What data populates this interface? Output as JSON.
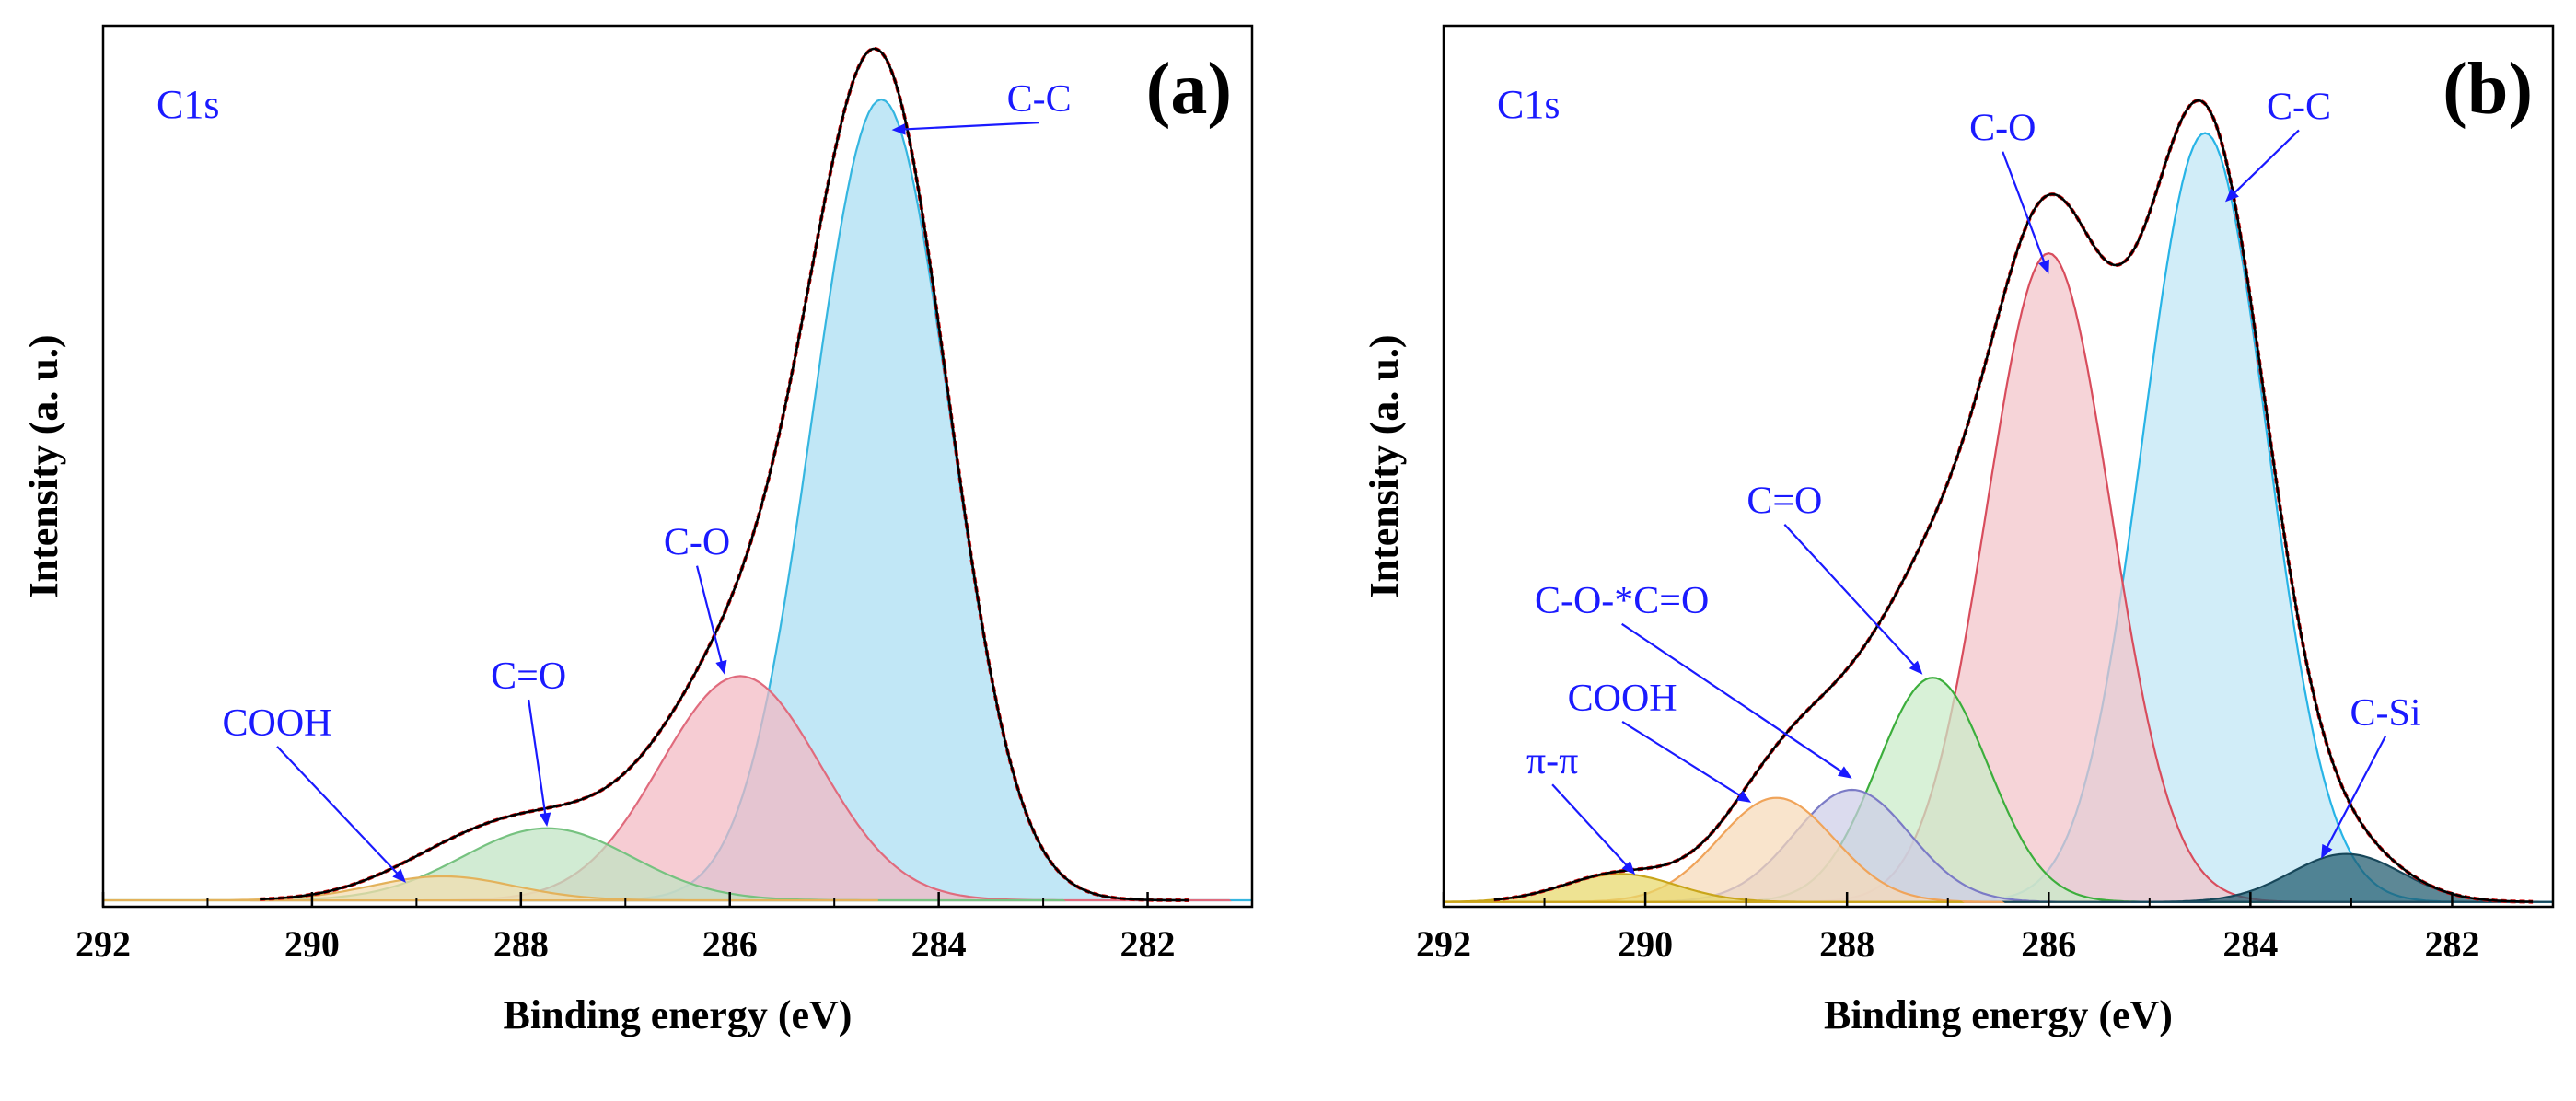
{
  "figure": {
    "background": "#ffffff"
  },
  "chart_data": [
    {
      "id": "a",
      "type": "area",
      "panel_label": "(a)",
      "region_label": "C1s",
      "xlabel": "Binding energy (eV)",
      "ylabel": "Intensity (a. u.)",
      "xlim": [
        292,
        281
      ],
      "x_reversed": true,
      "ylim": [
        0,
        1.1
      ],
      "xticks": [
        292,
        290,
        288,
        286,
        284,
        282
      ],
      "yticks_shown": false,
      "grid": false,
      "baseline": 0.008,
      "envelope_range": [
        290.5,
        281.6
      ],
      "components": [
        {
          "name": "C-C",
          "center": 284.55,
          "height": 1.0,
          "fwhm": 1.55,
          "fill": "#a9def2",
          "line": "#35b6e0",
          "label": "C-C"
        },
        {
          "name": "C-O",
          "center": 285.9,
          "height": 0.28,
          "fwhm": 1.8,
          "fill": "#f2b9c2",
          "line": "#e06b7d",
          "label": "C-O"
        },
        {
          "name": "C=O",
          "center": 287.75,
          "height": 0.09,
          "fwhm": 1.9,
          "fill": "#bfe3c2",
          "line": "#76c280",
          "label": "C=O"
        },
        {
          "name": "COOH",
          "center": 288.75,
          "height": 0.03,
          "fwhm": 1.6,
          "fill": "#f3dcae",
          "line": "#e3b25b",
          "label": "COOH"
        }
      ],
      "annotations": [
        {
          "text": "C-C",
          "points_to": [
            284.45,
            0.97
          ]
        },
        {
          "text": "C-O",
          "points_to": [
            286.05,
            0.29
          ]
        },
        {
          "text": "C=O",
          "points_to": [
            287.75,
            0.1
          ]
        },
        {
          "text": "COOH",
          "points_to": [
            289.1,
            0.03
          ]
        }
      ]
    },
    {
      "id": "b",
      "type": "area",
      "panel_label": "(b)",
      "region_label": "C1s",
      "xlabel": "Binding energy (eV)",
      "ylabel": "Intensity (a. u.)",
      "xlim": [
        292,
        281
      ],
      "x_reversed": true,
      "ylim": [
        0,
        1.1
      ],
      "xticks": [
        292,
        290,
        288,
        286,
        284,
        282
      ],
      "yticks_shown": false,
      "grid": false,
      "baseline": 0.006,
      "envelope_range": [
        291.5,
        281.2
      ],
      "components": [
        {
          "name": "C-C",
          "center": 284.45,
          "height": 0.96,
          "fwhm": 1.45,
          "fill": "#bfe6f5",
          "line": "#28b4e6",
          "label": "C-C"
        },
        {
          "name": "C-O",
          "center": 286.0,
          "height": 0.81,
          "fwhm": 1.45,
          "fill": "#f3c3c9",
          "line": "#d84d5d",
          "label": "C-O"
        },
        {
          "name": "C=O",
          "center": 287.15,
          "height": 0.28,
          "fwhm": 1.3,
          "fill": "#c9ebc8",
          "line": "#3cae3c",
          "label": "C=O"
        },
        {
          "name": "C-O-*C=O",
          "center": 287.95,
          "height": 0.14,
          "fwhm": 1.35,
          "fill": "#cdcde8",
          "line": "#7b7bc6",
          "label": "C-O-*C=O"
        },
        {
          "name": "COOH",
          "center": 288.7,
          "height": 0.13,
          "fwhm": 1.35,
          "fill": "#f7d9b8",
          "line": "#f0a45a",
          "label": "COOH"
        },
        {
          "name": "π-π",
          "center": 290.25,
          "height": 0.035,
          "fwhm": 1.3,
          "fill": "#e8d86a",
          "line": "#c9a51a",
          "label": "π-π"
        },
        {
          "name": "C-Si",
          "center": 283.05,
          "height": 0.06,
          "fwhm": 1.3,
          "fill": "#1f5a6e",
          "line": "#17475a",
          "label": "C-Si"
        }
      ],
      "annotations": [
        {
          "text": "C-C",
          "points_to": [
            284.25,
            0.88
          ]
        },
        {
          "text": "C-O",
          "points_to": [
            286.0,
            0.79
          ]
        },
        {
          "text": "C=O",
          "points_to": [
            287.25,
            0.29
          ]
        },
        {
          "text": "C-O-*C=O",
          "points_to": [
            287.95,
            0.16
          ]
        },
        {
          "text": "COOH",
          "points_to": [
            288.95,
            0.13
          ]
        },
        {
          "text": "π-π",
          "points_to": [
            290.1,
            0.04
          ]
        },
        {
          "text": "C-Si",
          "points_to": [
            283.3,
            0.06
          ]
        }
      ]
    }
  ]
}
